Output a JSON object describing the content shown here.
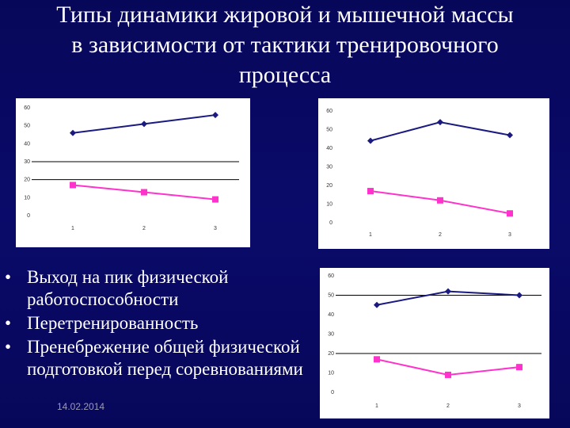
{
  "title": {
    "line1": "Типы динамики жировой и мышечной массы",
    "line2": "в зависимости от тактики тренировочного",
    "line3": "процесса"
  },
  "bullets": [
    {
      "text": "Выход на пик физической работоспособности"
    },
    {
      "text": "Перетренированность"
    },
    {
      "text": "Пренебрежение общей физической подготовкой перед соревнованиями"
    }
  ],
  "bullet_glyph": "•",
  "footer": {
    "date": "14.02.2014"
  },
  "colors": {
    "series_1": "#1a1a80",
    "series_2": "#ff33cc",
    "reference_line": "#000000"
  },
  "chart_data": [
    {
      "type": "line",
      "x": [
        1,
        2,
        3
      ],
      "ylim": [
        0,
        60
      ],
      "y_ticks": [
        "0",
        "10",
        "20",
        "30",
        "40",
        "50",
        "60"
      ],
      "x_ticks": [
        "1",
        "2",
        "3"
      ],
      "reference_lines": [
        30,
        20
      ],
      "series": [
        {
          "marker": "diamond",
          "values": [
            46,
            51,
            56
          ]
        },
        {
          "marker": "square",
          "values": [
            17,
            13,
            9
          ]
        }
      ]
    },
    {
      "type": "line",
      "x": [
        1,
        2,
        3
      ],
      "ylim": [
        0,
        60
      ],
      "y_ticks": [
        "0",
        "10",
        "20",
        "30",
        "40",
        "50",
        "60"
      ],
      "x_ticks": [
        "1",
        "2",
        "3"
      ],
      "reference_lines": [],
      "series": [
        {
          "marker": "diamond",
          "values": [
            44,
            54,
            47
          ]
        },
        {
          "marker": "square",
          "values": [
            17,
            12,
            5
          ]
        }
      ]
    },
    {
      "type": "line",
      "x": [
        1,
        2,
        3
      ],
      "ylim": [
        0,
        60
      ],
      "y_ticks": [
        "0",
        "10",
        "20",
        "30",
        "40",
        "50",
        "60"
      ],
      "x_ticks": [
        "1",
        "2",
        "3"
      ],
      "reference_lines": [
        50,
        20
      ],
      "series": [
        {
          "marker": "diamond",
          "values": [
            45,
            52,
            50
          ]
        },
        {
          "marker": "square",
          "values": [
            17,
            9,
            13
          ]
        }
      ]
    }
  ]
}
